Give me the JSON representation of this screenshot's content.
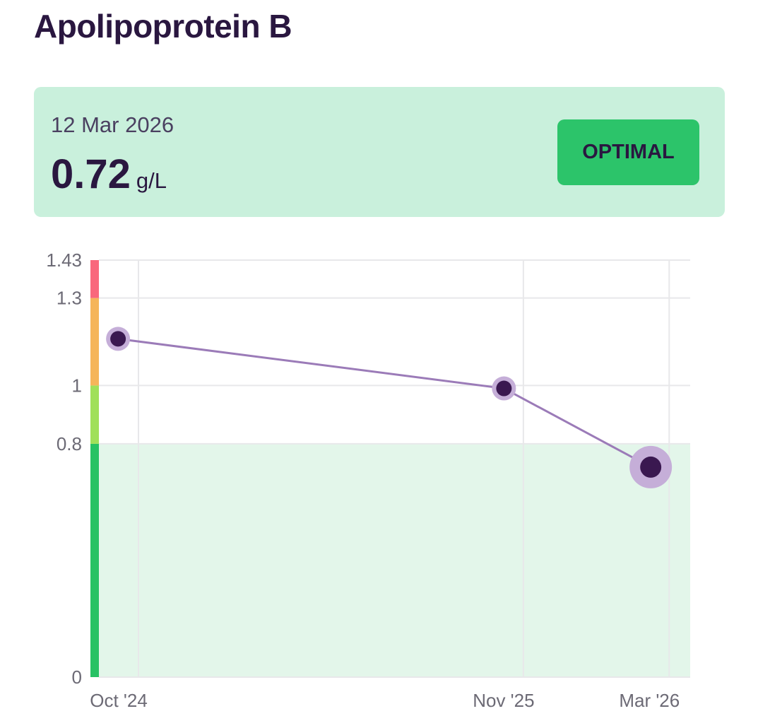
{
  "title": "Apolipoprotein B",
  "latest": {
    "date": "12 Mar 2026",
    "value": "0.72",
    "unit": "g/L",
    "status": "OPTIMAL"
  },
  "colors": {
    "text": "#2a1740",
    "card_bg": "#c9f0dc",
    "badge": "#2cc46a",
    "line": "#9b7bb8",
    "point": "#3a1850",
    "point_halo": "#c5aed8",
    "optimal_fill": "#e3f6ea",
    "grid": "#e8e8ea"
  },
  "chart_data": {
    "type": "line",
    "xlabel": "",
    "ylabel": "",
    "ylim": [
      0,
      1.43
    ],
    "yticks": [
      0,
      0.8,
      1,
      1.3,
      1.43
    ],
    "ytick_labels": [
      "0",
      "0.8",
      "1",
      "1.3",
      "1.43"
    ],
    "xticks": [
      {
        "date": "2024-10-01",
        "label": "Oct '24"
      },
      {
        "date": "2025-11-01",
        "label": "Nov '25"
      },
      {
        "date": "2026-03-31",
        "label": "Mar '26"
      }
    ],
    "grid": true,
    "points": [
      {
        "date": "2024-09-10",
        "value": 1.16
      },
      {
        "date": "2025-10-12",
        "value": 0.99
      },
      {
        "date": "2026-03-12",
        "value": 0.72
      }
    ],
    "reference_bands": [
      {
        "from": 0,
        "to": 0.8,
        "color": "#27c264",
        "label": "optimal"
      },
      {
        "from": 0.8,
        "to": 1.0,
        "color": "#a0e05a"
      },
      {
        "from": 1.0,
        "to": 1.3,
        "color": "#f5b55a"
      },
      {
        "from": 1.3,
        "to": 1.43,
        "color": "#f9687c"
      }
    ]
  }
}
